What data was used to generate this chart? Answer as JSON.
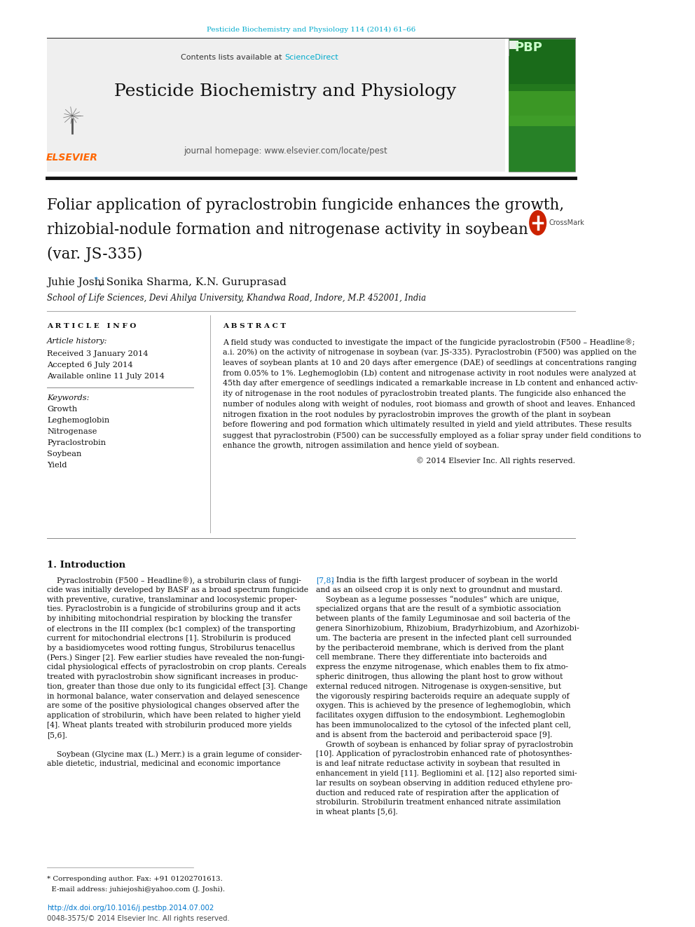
{
  "page_bg": "#ffffff",
  "top_journal_line": "Pesticide Biochemistry and Physiology 114 (2014) 61–66",
  "top_journal_color": "#00aacc",
  "header_bg": "#f0f0f0",
  "contents_line": "Contents lists available at ",
  "science_direct": "ScienceDirect",
  "journal_title": "Pesticide Biochemistry and Physiology",
  "journal_homepage": "journal homepage: www.elsevier.com/locate/pest",
  "elsevier_color": "#ff6600",
  "elsevier_text": "ELSEVIER",
  "article_title_line1": "Foliar application of pyraclostrobin fungicide enhances the growth,",
  "article_title_line2": "rhizobial-nodule formation and nitrogenase activity in soybean",
  "article_title_line3": "(var. JS-335)",
  "authors": "Juhie Joshi",
  "authors_star": " *",
  "authors2": ", Sonika Sharma, K.N. Guruprasad",
  "affiliation": "School of Life Sciences, Devi Ahilya University, Khandwa Road, Indore, M.P. 452001, India",
  "article_info_header": "A R T I C L E   I N F O",
  "article_history_header": "Article history:",
  "received": "Received 3 January 2014",
  "accepted": "Accepted 6 July 2014",
  "available": "Available online 11 July 2014",
  "keywords_header": "Keywords:",
  "keywords": [
    "Growth",
    "Leghemoglobin",
    "Nitrogenase",
    "Pyraclostrobin",
    "Soybean",
    "Yield"
  ],
  "abstract_header": "A B S T R A C T",
  "abstract_lines": [
    "A field study was conducted to investigate the impact of the fungicide pyraclostrobin (F500 – Headline®;",
    "a.i. 20%) on the activity of nitrogenase in soybean (var. JS-335). Pyraclostrobin (F500) was applied on the",
    "leaves of soybean plants at 10 and 20 days after emergence (DAE) of seedlings at concentrations ranging",
    "from 0.05% to 1%. Leghemoglobin (Lb) content and nitrogenase activity in root nodules were analyzed at",
    "45th day after emergence of seedlings indicated a remarkable increase in Lb content and enhanced activ-",
    "ity of nitrogenase in the root nodules of pyraclostrobin treated plants. The fungicide also enhanced the",
    "number of nodules along with weight of nodules, root biomass and growth of shoot and leaves. Enhanced",
    "nitrogen fixation in the root nodules by pyraclostrobin improves the growth of the plant in soybean",
    "before flowering and pod formation which ultimately resulted in yield and yield attributes. These results",
    "suggest that pyraclostrobin (F500) can be successfully employed as a foliar spray under field conditions to",
    "enhance the growth, nitrogen assimilation and hence yield of soybean."
  ],
  "copyright": "© 2014 Elsevier Inc. All rights reserved.",
  "intro_heading": "1. Introduction",
  "col1_lines": [
    "    Pyraclostrobin (F500 – Headline®), a strobilurin class of fungi-",
    "cide was initially developed by BASF as a broad spectrum fungicide",
    "with preventive, curative, translaminar and locosystemic proper-",
    "ties. Pyraclostrobin is a fungicide of strobilurins group and it acts",
    "by inhibiting mitochondrial respiration by blocking the transfer",
    "of electrons in the III complex (bc1 complex) of the transporting",
    "current for mitochondrial electrons [1]. Strobilurin is produced",
    "by a basidiomycetes wood rotting fungus, Strobilurus tenacellus",
    "(Pers.) Singer [2]. Few earlier studies have revealed the non-fungi-",
    "cidal physiological effects of pyraclostrobin on crop plants. Cereals",
    "treated with pyraclostrobin show significant increases in produc-",
    "tion, greater than those due only to its fungicidal effect [3]. Change",
    "in hormonal balance, water conservation and delayed senescence",
    "are some of the positive physiological changes observed after the",
    "application of strobilurin, which have been related to higher yield",
    "[4]. Wheat plants treated with strobilurin produced more yields",
    "[5,6].",
    "",
    "    Soybean (Glycine max (L.) Merr.) is a grain legume of consider-",
    "able dietetic, industrial, medicinal and economic importance"
  ],
  "col2_lines": [
    "[7,8]. India is the fifth largest producer of soybean in the world",
    "and as an oilseed crop it is only next to groundnut and mustard.",
    "    Soybean as a legume possesses “nodules” which are unique,",
    "specialized organs that are the result of a symbiotic association",
    "between plants of the family Leguminosae and soil bacteria of the",
    "genera Sinorhizobium, Rhizobium, Bradyrhizobium, and Azorhizobi-",
    "um. The bacteria are present in the infected plant cell surrounded",
    "by the peribacteroid membrane, which is derived from the plant",
    "cell membrane. There they differentiate into bacteroids and",
    "express the enzyme nitrogenase, which enables them to fix atmo-",
    "spheric dinitrogen, thus allowing the plant host to grow without",
    "external reduced nitrogen. Nitrogenase is oxygen-sensitive, but",
    "the vigorously respiring bacteroids require an adequate supply of",
    "oxygen. This is achieved by the presence of leghemoglobin, which",
    "facilitates oxygen diffusion to the endosymbiont. Leghemoglobin",
    "has been immunolocalized to the cytosol of the infected plant cell,",
    "and is absent from the bacteroid and peribacteroid space [9].",
    "    Growth of soybean is enhanced by foliar spray of pyraclostrobin",
    "[10]. Application of pyraclostrobin enhanced rate of photosynthes-",
    "is and leaf nitrate reductase activity in soybean that resulted in",
    "enhancement in yield [11]. Begliomini et al. [12] also reported simi-",
    "lar results on soybean observing in addition reduced ethylene pro-",
    "duction and reduced rate of respiration after the application of",
    "strobilurin. Strobilurin treatment enhanced nitrate assimilation",
    "in wheat plants [5,6]."
  ],
  "footnote_line1": "* Corresponding author. Fax: +91 01202701613.",
  "footnote_line2": "  E-mail address: juhiejoshi@yahoo.com (J. Joshi).",
  "footer_doi": "http://dx.doi.org/10.1016/j.pestbp.2014.07.002",
  "footer_issn": "0048-3575/© 2014 Elsevier Inc. All rights reserved.",
  "link_color": "#0077cc",
  "scidir_color": "#00aacc"
}
